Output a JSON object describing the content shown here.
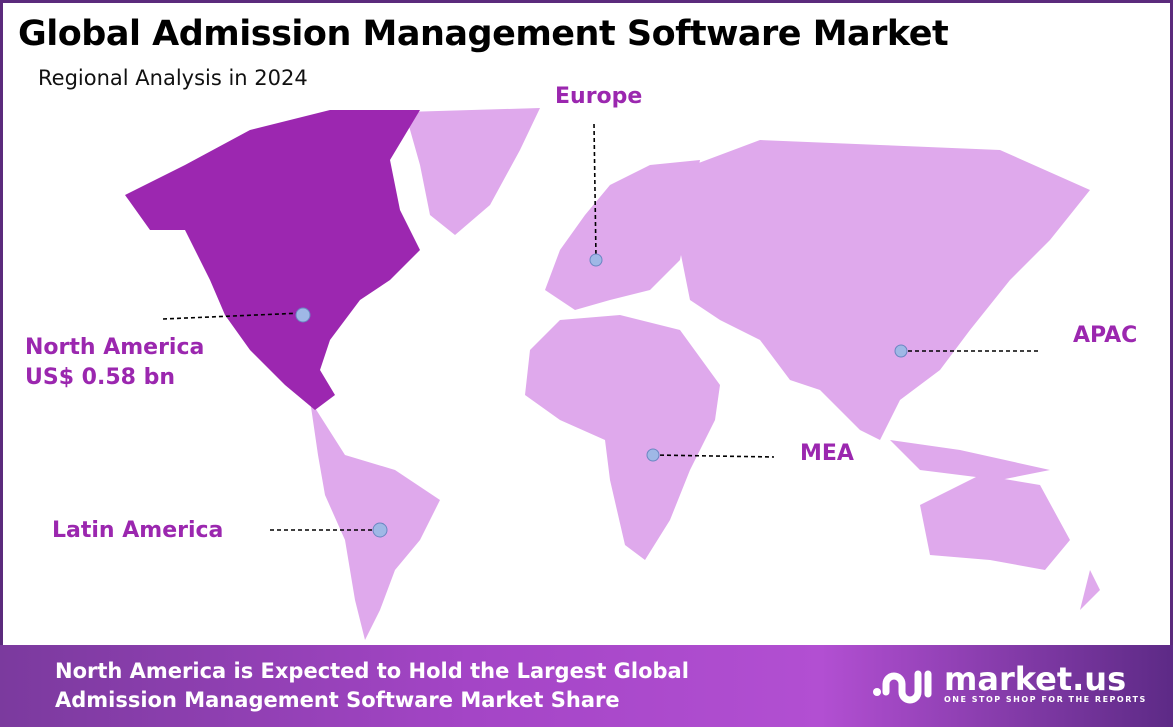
{
  "header": {
    "title": "Global Admission Management Software Market",
    "subtitle": "Regional Analysis in 2024"
  },
  "colors": {
    "highlight_region": "#9c27b0",
    "other_regions": "#dfa9ec",
    "label": "#9b27af",
    "marker": "#9fb8e6",
    "border": "#5b2a7c"
  },
  "regions": [
    {
      "name": "North America",
      "value": "US$ 0.58 bn",
      "highlighted": true
    },
    {
      "name": "Europe"
    },
    {
      "name": "APAC"
    },
    {
      "name": "MEA"
    },
    {
      "name": "Latin America"
    }
  ],
  "footer": {
    "line1": "North America is Expected to Hold the Largest Global",
    "line2": "Admission Management Software Market Share"
  },
  "logo": {
    "name": "market.us",
    "tagline": "ONE STOP SHOP FOR THE REPORTS"
  }
}
